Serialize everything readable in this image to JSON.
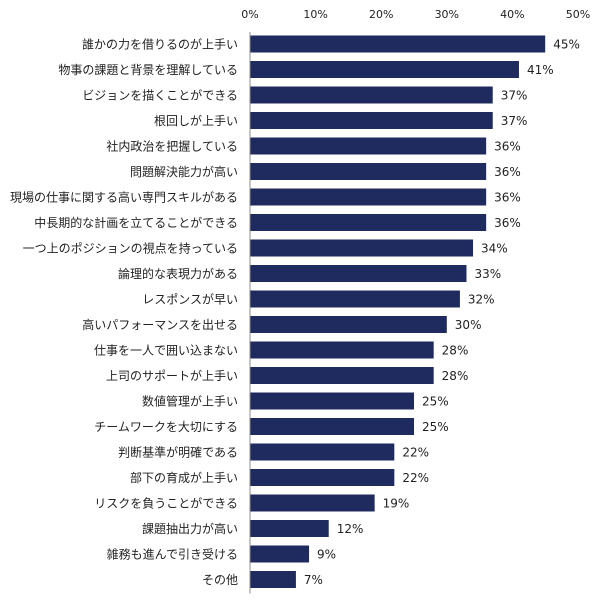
{
  "chart_data": {
    "type": "bar",
    "orientation": "horizontal",
    "categories": [
      "誰かの力を借りるのが上手い",
      "物事の課題と背景を理解している",
      "ビジョンを描くことができる",
      "根回しが上手い",
      "社内政治を把握している",
      "問題解決能力が高い",
      "現場の仕事に関する高い専門スキルがある",
      "中長期的な計画を立てることができる",
      "一つ上のポジションの視点を持っている",
      "論理的な表現力がある",
      "レスポンスが早い",
      "高いパフォーマンスを出せる",
      "仕事を一人で囲い込まない",
      "上司のサポートが上手い",
      "数値管理が上手い",
      "チームワークを大切にする",
      "判断基準が明確である",
      "部下の育成が上手い",
      "リスクを負うことができる",
      "課題抽出力が高い",
      "雑務も進んで引き受ける",
      "その他"
    ],
    "values": [
      45,
      41,
      37,
      37,
      36,
      36,
      36,
      36,
      34,
      33,
      32,
      30,
      28,
      28,
      25,
      25,
      22,
      22,
      19,
      12,
      9,
      7
    ],
    "value_labels": [
      "45%",
      "41%",
      "37%",
      "37%",
      "36%",
      "36%",
      "36%",
      "36%",
      "34%",
      "33%",
      "32%",
      "30%",
      "28%",
      "28%",
      "25%",
      "25%",
      "22%",
      "22%",
      "19%",
      "12%",
      "9%",
      "7%"
    ],
    "x_tick_values": [
      0,
      10,
      20,
      30,
      40,
      50
    ],
    "x_ticks": [
      "0%",
      "10%",
      "20%",
      "30%",
      "40%",
      "50%"
    ],
    "xlim": [
      0,
      50
    ],
    "grid": false,
    "legend": "none",
    "bar_color": "#1f2b5e",
    "axis_color": "#8c8c8c"
  }
}
